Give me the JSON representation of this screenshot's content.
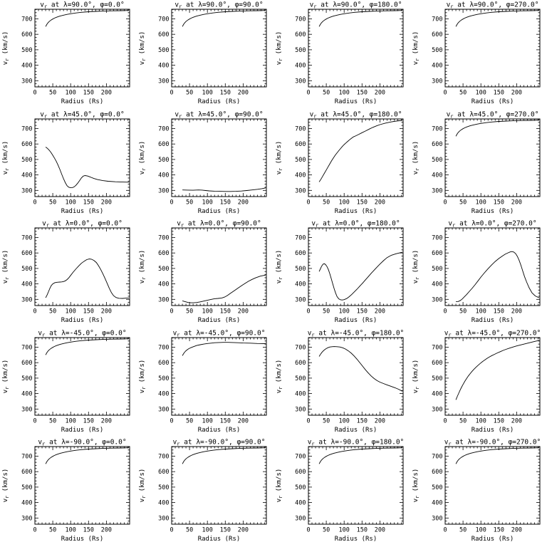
{
  "figure": {
    "background_color": "#ffffff",
    "line_color": "#000000",
    "frame_color": "#000000"
  },
  "chart_data": {
    "type": "line",
    "layout": {
      "rows": 5,
      "cols": 4,
      "legend": "none",
      "grid": "off"
    },
    "xlabel": "Radius (Rs)",
    "ylabel": "vr (km/s)",
    "ylabel_parts": {
      "main": "v",
      "sub": "r",
      "rest": " (km/s)"
    },
    "title_template": {
      "prefix_main": "v",
      "prefix_sub": "r",
      "mid": " at λ=",
      "between": "°, φ=",
      "suffix": "°"
    },
    "xlim": [
      0,
      265
    ],
    "ylim": [
      260,
      762
    ],
    "xticks": [
      0,
      50,
      100,
      150,
      200
    ],
    "yticks": [
      300,
      400,
      500,
      600,
      700
    ],
    "x_minor_step": 10,
    "y_minor_step": 20,
    "plots": [
      {
        "lambda": "90.0",
        "phi": "0.0",
        "x": [
          30,
          33,
          36,
          40,
          45,
          50,
          55,
          60,
          70,
          80,
          90,
          100,
          115,
          130,
          150,
          170,
          190,
          215,
          240,
          263
        ],
        "y": [
          650,
          663,
          673,
          683,
          692,
          699,
          705,
          710,
          718,
          724,
          729,
          733,
          738,
          742,
          746,
          748,
          750,
          752,
          753,
          754
        ]
      },
      {
        "lambda": "90.0",
        "phi": "90.0",
        "x": [
          30,
          33,
          36,
          40,
          45,
          50,
          55,
          60,
          70,
          80,
          90,
          100,
          115,
          130,
          150,
          170,
          190,
          215,
          240,
          263
        ],
        "y": [
          650,
          663,
          673,
          683,
          692,
          699,
          705,
          710,
          718,
          724,
          729,
          733,
          738,
          742,
          746,
          748,
          750,
          752,
          753,
          754
        ]
      },
      {
        "lambda": "90.0",
        "phi": "180.0",
        "x": [
          30,
          33,
          36,
          40,
          45,
          50,
          55,
          60,
          70,
          80,
          90,
          100,
          115,
          130,
          150,
          170,
          190,
          215,
          240,
          263
        ],
        "y": [
          650,
          663,
          673,
          683,
          692,
          699,
          705,
          710,
          718,
          724,
          729,
          733,
          738,
          742,
          746,
          748,
          750,
          752,
          753,
          754
        ]
      },
      {
        "lambda": "90.0",
        "phi": "270.0",
        "x": [
          30,
          33,
          36,
          40,
          45,
          50,
          55,
          60,
          70,
          80,
          90,
          100,
          115,
          130,
          150,
          170,
          190,
          215,
          240,
          263
        ],
        "y": [
          650,
          663,
          673,
          683,
          692,
          699,
          705,
          710,
          718,
          724,
          729,
          733,
          738,
          742,
          746,
          748,
          750,
          752,
          753,
          754
        ]
      },
      {
        "lambda": "45.0",
        "phi": "0.0",
        "x": [
          30,
          35,
          40,
          45,
          50,
          55,
          60,
          65,
          70,
          75,
          80,
          85,
          90,
          95,
          100,
          105,
          110,
          115,
          120,
          125,
          130,
          135,
          140,
          147,
          155,
          165,
          175,
          190,
          205,
          225,
          245,
          263
        ],
        "y": [
          580,
          572,
          560,
          545,
          527,
          508,
          487,
          462,
          435,
          405,
          375,
          350,
          330,
          320,
          317,
          318,
          323,
          333,
          347,
          363,
          380,
          392,
          396,
          393,
          386,
          377,
          370,
          363,
          359,
          356,
          354,
          353
        ]
      },
      {
        "lambda": "45.0",
        "phi": "90.0",
        "x": [
          30,
          45,
          60,
          75,
          85,
          95,
          105,
          120,
          135,
          150,
          165,
          180,
          195,
          210,
          225,
          240,
          252,
          263
        ],
        "y": [
          303,
          302,
          301,
          303,
          302,
          299,
          297,
          295,
          294,
          293,
          293,
          294,
          296,
          299,
          303,
          307,
          311,
          316
        ]
      },
      {
        "lambda": "45.0",
        "phi": "180.0",
        "x": [
          30,
          35,
          40,
          45,
          50,
          55,
          60,
          65,
          70,
          75,
          80,
          85,
          90,
          95,
          100,
          105,
          110,
          115,
          120,
          126,
          132,
          140,
          150,
          160,
          170,
          180,
          190,
          200,
          215,
          230,
          245,
          263
        ],
        "y": [
          355,
          372,
          392,
          412,
          432,
          452,
          472,
          492,
          510,
          527,
          543,
          557,
          571,
          584,
          596,
          607,
          617,
          627,
          636,
          646,
          652,
          661,
          673,
          684,
          696,
          707,
          717,
          725,
          735,
          742,
          748,
          753
        ]
      },
      {
        "lambda": "45.0",
        "phi": "270.0",
        "x": [
          30,
          33,
          36,
          40,
          45,
          50,
          55,
          60,
          70,
          80,
          90,
          100,
          115,
          130,
          150,
          170,
          190,
          215,
          240,
          263
        ],
        "y": [
          650,
          663,
          673,
          683,
          692,
          699,
          705,
          710,
          718,
          724,
          729,
          733,
          738,
          742,
          746,
          748,
          750,
          752,
          753,
          754
        ]
      },
      {
        "lambda": "0.0",
        "phi": "0.0",
        "x": [
          30,
          34,
          38,
          42,
          46,
          50,
          55,
          60,
          65,
          70,
          75,
          80,
          85,
          90,
          95,
          100,
          107,
          115,
          123,
          130,
          138,
          145,
          152,
          158,
          165,
          172,
          178,
          184,
          190,
          196,
          202,
          208,
          214,
          220,
          227,
          235,
          245,
          255,
          263
        ],
        "y": [
          310,
          328,
          350,
          372,
          390,
          400,
          407,
          410,
          411,
          412,
          413,
          415,
          420,
          428,
          440,
          455,
          476,
          497,
          517,
          533,
          547,
          557,
          561,
          560,
          552,
          538,
          518,
          494,
          466,
          436,
          404,
          372,
          344,
          324,
          312,
          307,
          306,
          308,
          308
        ]
      },
      {
        "lambda": "0.0",
        "phi": "90.0",
        "x": [
          30,
          38,
          46,
          54,
          62,
          70,
          80,
          90,
          100,
          110,
          120,
          130,
          140,
          148,
          156,
          165,
          175,
          185,
          195,
          205,
          215,
          225,
          235,
          248,
          263
        ],
        "y": [
          290,
          285,
          280,
          278,
          278,
          280,
          284,
          289,
          294,
          299,
          304,
          306,
          309,
          315,
          325,
          340,
          356,
          372,
          388,
          403,
          417,
          429,
          439,
          450,
          457
        ]
      },
      {
        "lambda": "0.0",
        "phi": "180.0",
        "x": [
          30,
          33,
          36,
          39,
          42,
          45,
          48,
          52,
          56,
          60,
          64,
          68,
          72,
          76,
          80,
          85,
          90,
          95,
          100,
          107,
          114,
          121,
          128,
          136,
          144,
          152,
          160,
          168,
          176,
          184,
          192,
          200,
          210,
          220,
          232,
          245,
          263
        ],
        "y": [
          480,
          495,
          510,
          522,
          529,
          530,
          525,
          512,
          492,
          465,
          434,
          402,
          370,
          342,
          318,
          303,
          297,
          296,
          298,
          305,
          317,
          331,
          347,
          366,
          386,
          406,
          427,
          448,
          469,
          489,
          509,
          528,
          550,
          570,
          585,
          595,
          605
        ]
      },
      {
        "lambda": "0.0",
        "phi": "270.0",
        "x": [
          30,
          36,
          42,
          48,
          54,
          60,
          68,
          76,
          84,
          92,
          100,
          110,
          120,
          130,
          140,
          150,
          160,
          168,
          176,
          182,
          187,
          192,
          197,
          202,
          207,
          212,
          217,
          222,
          228,
          235,
          243,
          252,
          263
        ],
        "y": [
          285,
          286,
          292,
          303,
          317,
          331,
          352,
          373,
          396,
          420,
          444,
          472,
          498,
          522,
          545,
          564,
          580,
          592,
          601,
          607,
          609,
          606,
          596,
          578,
          552,
          520,
          484,
          448,
          412,
          375,
          342,
          322,
          310
        ]
      },
      {
        "lambda": "-45.0",
        "phi": "0.0",
        "x": [
          30,
          33,
          36,
          40,
          45,
          50,
          55,
          60,
          70,
          80,
          90,
          100,
          115,
          130,
          150,
          170,
          190,
          215,
          240,
          263
        ],
        "y": [
          650,
          663,
          673,
          683,
          692,
          699,
          705,
          710,
          718,
          724,
          729,
          733,
          738,
          742,
          746,
          748,
          750,
          752,
          753,
          754
        ]
      },
      {
        "lambda": "-45.0",
        "phi": "90.0",
        "x": [
          30,
          33,
          36,
          40,
          45,
          50,
          56,
          62,
          70,
          80,
          90,
          100,
          110,
          120,
          132,
          145,
          158,
          172,
          186,
          200,
          220,
          240,
          263
        ],
        "y": [
          645,
          657,
          667,
          677,
          686,
          693,
          699,
          704,
          711,
          716,
          720,
          724,
          726,
          729,
          730,
          731,
          731,
          730,
          729,
          727,
          726,
          724,
          723
        ]
      },
      {
        "lambda": "-45.0",
        "phi": "180.0",
        "x": [
          30,
          34,
          38,
          42,
          46,
          50,
          55,
          60,
          66,
          72,
          80,
          88,
          96,
          104,
          112,
          120,
          128,
          136,
          144,
          152,
          160,
          168,
          176,
          184,
          192,
          200,
          210,
          220,
          230,
          242,
          252,
          263
        ],
        "y": [
          640,
          655,
          667,
          677,
          685,
          691,
          697,
          701,
          703,
          704,
          703,
          701,
          696,
          688,
          676,
          661,
          643,
          622,
          599,
          576,
          553,
          532,
          513,
          497,
          484,
          474,
          465,
          456,
          448,
          438,
          428,
          415
        ]
      },
      {
        "lambda": "-45.0",
        "phi": "270.0",
        "x": [
          30,
          34,
          38,
          42,
          46,
          50,
          55,
          60,
          65,
          70,
          75,
          80,
          86,
          92,
          98,
          104,
          110,
          117,
          124,
          131,
          138,
          146,
          154,
          162,
          170,
          180,
          190,
          200,
          212,
          224,
          236,
          250,
          263
        ],
        "y": [
          360,
          382,
          403,
          423,
          442,
          459,
          479,
          497,
          514,
          529,
          543,
          556,
          570,
          583,
          595,
          606,
          616,
          627,
          637,
          646,
          654,
          663,
          671,
          679,
          686,
          694,
          701,
          708,
          715,
          722,
          729,
          737,
          744
        ]
      },
      {
        "lambda": "-90.0",
        "phi": "0.0",
        "x": [
          30,
          33,
          36,
          40,
          45,
          50,
          55,
          60,
          70,
          80,
          90,
          100,
          115,
          130,
          150,
          170,
          190,
          215,
          240,
          263
        ],
        "y": [
          650,
          663,
          673,
          683,
          692,
          699,
          705,
          710,
          718,
          724,
          729,
          733,
          738,
          742,
          746,
          748,
          750,
          752,
          753,
          754
        ]
      },
      {
        "lambda": "-90.0",
        "phi": "90.0",
        "x": [
          30,
          33,
          36,
          40,
          45,
          50,
          55,
          60,
          70,
          80,
          90,
          100,
          115,
          130,
          150,
          170,
          190,
          215,
          240,
          263
        ],
        "y": [
          650,
          663,
          673,
          683,
          692,
          699,
          705,
          710,
          718,
          724,
          729,
          733,
          738,
          742,
          746,
          748,
          750,
          752,
          753,
          754
        ]
      },
      {
        "lambda": "-90.0",
        "phi": "180.0",
        "x": [
          30,
          33,
          36,
          40,
          45,
          50,
          55,
          60,
          70,
          80,
          90,
          100,
          115,
          130,
          150,
          170,
          190,
          215,
          240,
          263
        ],
        "y": [
          650,
          663,
          673,
          683,
          692,
          699,
          705,
          710,
          718,
          724,
          729,
          733,
          738,
          742,
          746,
          748,
          750,
          752,
          753,
          754
        ]
      },
      {
        "lambda": "-90.0",
        "phi": "270.0",
        "x": [
          30,
          33,
          36,
          40,
          45,
          50,
          55,
          60,
          70,
          80,
          90,
          100,
          115,
          130,
          150,
          170,
          190,
          215,
          240,
          263
        ],
        "y": [
          650,
          663,
          673,
          683,
          692,
          699,
          705,
          710,
          718,
          724,
          729,
          733,
          738,
          742,
          746,
          748,
          750,
          752,
          753,
          754
        ]
      }
    ]
  }
}
